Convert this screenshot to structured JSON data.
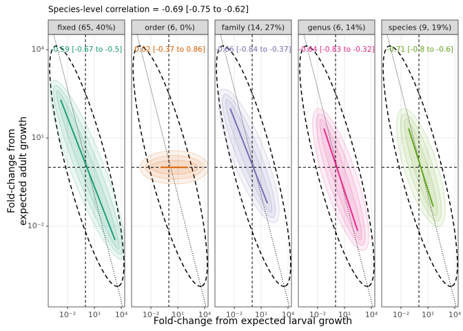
{
  "chart_data": {
    "type": "line",
    "title": "Species-level correlation = -0.69 [-0.75 to -0.62]",
    "x_label": "Fold-change from expected larval growth",
    "y_label": [
      "Fold-change from",
      "expected adult growth"
    ],
    "log_x": true,
    "log_y": true,
    "grid": true,
    "xlim": [
      7e-05,
      24000
    ],
    "ylim": [
      1.8e-05,
      33000
    ],
    "xticks": [
      {
        "value": 0.01,
        "label": "10⁻²"
      },
      {
        "value": 10,
        "label": "10¹"
      },
      {
        "value": 10000,
        "label": "10⁴"
      }
    ],
    "yticks": [
      {
        "value": 0.01,
        "label": "10⁻²"
      },
      {
        "value": 10,
        "label": "10¹"
      },
      {
        "value": 10000,
        "label": "10⁴"
      }
    ],
    "reference_x": 1,
    "reference_y": 1,
    "facets": [
      {
        "name": "fixed (65, 40%)",
        "color": "#1b9e77",
        "annotation": "-0.59 [-0.67 to -0.5]",
        "x": [
          0.0017,
          2000
        ],
        "y": [
          200,
          0.0034
        ]
      },
      {
        "name": "order (6, 0%)",
        "color": "#d95f02",
        "annotation": "0.02 [-0.37 to 0.86]",
        "x": [
          0.12,
          140
        ],
        "y": [
          1,
          1
        ]
      },
      {
        "name": "family (14, 27%)",
        "color": "#7570b3",
        "annotation": "-0.66 [-0.84 to -0.37]",
        "x": [
          0.0035,
          50
        ],
        "y": [
          100,
          0.06
        ]
      },
      {
        "name": "genus (6, 14%)",
        "color": "#e7298a",
        "annotation": "-0.64 [-0.83 to -0.32]",
        "x": [
          0.05,
          290
        ],
        "y": [
          21,
          0.007
        ]
      },
      {
        "name": "species (9, 19%)",
        "color": "#66a61e",
        "annotation": "-0.71 [-0.8 to -0.6]",
        "x": [
          0.07,
          40
        ],
        "y": [
          21,
          0.046
        ]
      }
    ]
  }
}
